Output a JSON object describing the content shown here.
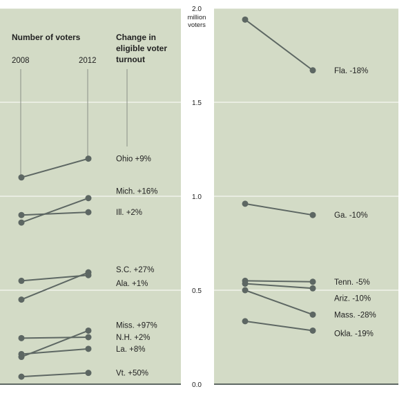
{
  "chart_data": {
    "type": "line",
    "x": [
      "2008",
      "2012"
    ],
    "ylim": [
      0,
      2.0
    ],
    "y_unit_lines": [
      "million",
      "voters"
    ],
    "y_ticks": [
      "0.0",
      "0.5",
      "1.0",
      "1.5",
      "2.0"
    ],
    "y_tick_values": [
      0,
      0.5,
      1.0,
      1.5,
      2.0
    ],
    "headers": {
      "voters": "Number of voters",
      "year_2008": "2008",
      "year_2012": "2012",
      "change": [
        "Change in",
        "eligible voter",
        "turnout"
      ]
    },
    "panels": [
      {
        "series": [
          {
            "label": "Ohio +9%",
            "values": [
              1.1,
              1.2
            ]
          },
          {
            "label": "Mich. +16%",
            "values": [
              0.86,
              0.99
            ]
          },
          {
            "label": "Ill. +2%",
            "values": [
              0.9,
              0.915
            ]
          },
          {
            "label": "S.C. +27%",
            "values": [
              0.45,
              0.595
            ]
          },
          {
            "label": "Ala. +1%",
            "values": [
              0.55,
              0.58
            ]
          },
          {
            "label": "Miss. +97%",
            "values": [
              0.145,
              0.285
            ]
          },
          {
            "label": "N.H. +2%",
            "values": [
              0.245,
              0.25
            ]
          },
          {
            "label": "La. +8%",
            "values": [
              0.16,
              0.188
            ]
          },
          {
            "label": "Vt. +50%",
            "values": [
              0.04,
              0.06
            ]
          }
        ]
      },
      {
        "series": [
          {
            "label": "Fla. -18%",
            "values": [
              1.94,
              1.67
            ]
          },
          {
            "label": "Ga. -10%",
            "values": [
              0.96,
              0.9
            ]
          },
          {
            "label": "Tenn. -5%",
            "values": [
              0.55,
              0.545
            ]
          },
          {
            "label": "Ariz. -10%",
            "values": [
              0.535,
              0.51
            ]
          },
          {
            "label": "Mass. -28%",
            "values": [
              0.5,
              0.37
            ]
          },
          {
            "label": "Okla. -19%",
            "values": [
              0.335,
              0.285
            ]
          }
        ]
      }
    ]
  }
}
